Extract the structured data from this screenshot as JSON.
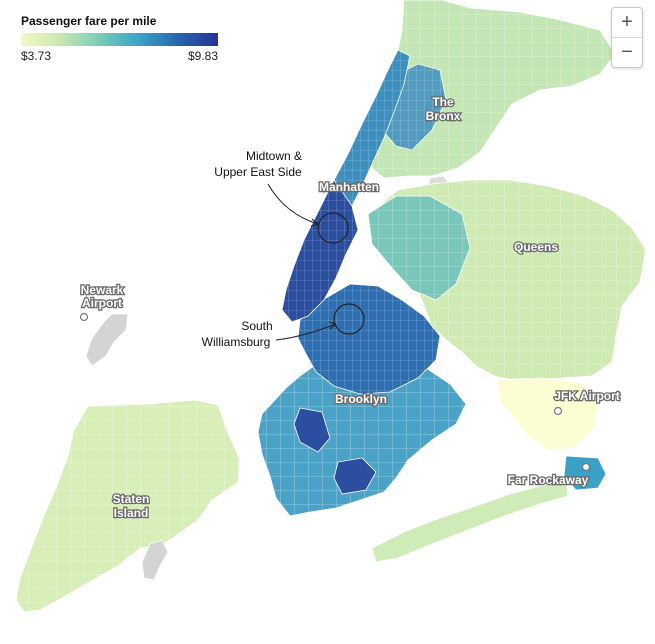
{
  "legend": {
    "title": "Passenger fare per mile",
    "min_label": "$3.73",
    "max_label": "$9.83",
    "gradient": [
      "#f3f9c4",
      "#c8e8b2",
      "#7ccab9",
      "#3aa3c4",
      "#2a64ad",
      "#253494"
    ]
  },
  "zoom": {
    "in_label": "+",
    "out_label": "−"
  },
  "places": {
    "bronx_line1": "The",
    "bronx_line2": "Bronx",
    "manhattan": "Manhatten",
    "queens": "Queens",
    "brooklyn": "Brooklyn",
    "staten_line1": "Staten",
    "staten_line2": "Island",
    "newark_line1": "Newark",
    "newark_line2": "Airport",
    "jfk": "JFK Airport",
    "far_rockaway": "Far Rockaway"
  },
  "annotations": {
    "midtown_line1": "Midtown &",
    "midtown_line2": "Upper East Side",
    "williamsburg_line1": "South",
    "williamsburg_line2": "Williamsburg"
  },
  "colors": {
    "boroughs": {
      "bronx": "#c3e6b4",
      "manhattan_upper": "#3d8fc0",
      "manhattan_mid": "#2b4ea0",
      "queens": "#cfeab3",
      "queens_west": "#79c7bb",
      "brooklyn_north": "#2e6fb2",
      "brooklyn_south": "#4aa2c6",
      "staten_island": "#d8eeb7",
      "far_rockaway": "#3ba0c5",
      "rockaway_peninsula": "#cfebb8",
      "jfk": "#fdfdd4",
      "airport_gray": "#d4d4d4",
      "water_gray": "#dcdcdc"
    }
  }
}
